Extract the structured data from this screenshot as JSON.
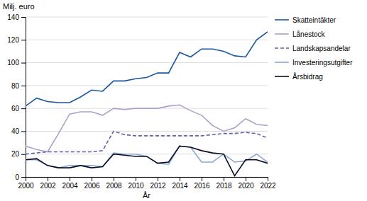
{
  "chart_data": {
    "type": "line",
    "xlabel": "År",
    "ylabel": "Milj. euro",
    "x": [
      2000,
      2001,
      2002,
      2003,
      2004,
      2005,
      2006,
      2007,
      2008,
      2009,
      2010,
      2011,
      2012,
      2013,
      2014,
      2015,
      2016,
      2017,
      2018,
      2019,
      2020,
      2021,
      2022
    ],
    "series": [
      {
        "name": "Skatteintäkter",
        "color": "#1a56a0",
        "line_style": "solid",
        "values": [
          62,
          69,
          66,
          65,
          65,
          70,
          76,
          75,
          84,
          84,
          86,
          87,
          91,
          91,
          109,
          105,
          112,
          112,
          110,
          106,
          105,
          120,
          127
        ]
      },
      {
        "name": "Lånestock",
        "color": "#b09fca",
        "line_style": "solid",
        "values": [
          27,
          24,
          22,
          38,
          55,
          57,
          57,
          54,
          60,
          59,
          60,
          60,
          60,
          62,
          63,
          58,
          54,
          45,
          40,
          43,
          51,
          46,
          45
        ]
      },
      {
        "name": "Landskapsandelar",
        "color": "#6060b0",
        "line_style": "dashed",
        "values": [
          20,
          21,
          22,
          22,
          22,
          22,
          22,
          23,
          40,
          37,
          36,
          36,
          36,
          36,
          36,
          36,
          36,
          37,
          38,
          38,
          39,
          38,
          34
        ]
      },
      {
        "name": "Investeringsutgifter",
        "color": "#8aaad4",
        "line_style": "solid",
        "values": [
          15,
          15,
          10,
          8,
          10,
          10,
          10,
          9,
          21,
          20,
          20,
          18,
          12,
          11,
          27,
          26,
          13,
          13,
          20,
          13,
          14,
          20,
          13
        ]
      },
      {
        "name": "Årsbidrag",
        "color": "#0a0a20",
        "line_style": "solid",
        "values": [
          15,
          16,
          10,
          8,
          8,
          10,
          8,
          9,
          20,
          19,
          18,
          18,
          12,
          13,
          27,
          26,
          23,
          21,
          20,
          1,
          15,
          15,
          12
        ]
      }
    ],
    "xlim": [
      2000,
      2022
    ],
    "xticks": [
      2000,
      2002,
      2004,
      2006,
      2008,
      2010,
      2012,
      2014,
      2016,
      2018,
      2020,
      2022
    ],
    "ylim": [
      0,
      140
    ],
    "yticks": [
      0,
      20,
      40,
      60,
      80,
      100,
      120,
      140
    ],
    "grid": true,
    "legend": "right"
  }
}
